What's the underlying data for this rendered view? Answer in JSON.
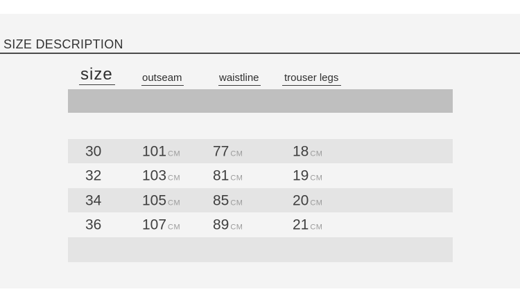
{
  "chart_data": {
    "type": "table",
    "title": "SIZE DESCRIPTION",
    "columns": [
      "size",
      "outseam",
      "waistline",
      "trouser legs"
    ],
    "unit": "CM",
    "rows": [
      {
        "size": "30",
        "outseam": "101",
        "waistline": "77",
        "trouser_legs": "18"
      },
      {
        "size": "32",
        "outseam": "103",
        "waistline": "81",
        "trouser_legs": "19"
      },
      {
        "size": "34",
        "outseam": "105",
        "waistline": "85",
        "trouser_legs": "20"
      },
      {
        "size": "36",
        "outseam": "107",
        "waistline": "89",
        "trouser_legs": "21"
      }
    ]
  },
  "colors": {
    "page_bg": "#f4f4f4",
    "banner": "#bfbfbf",
    "row_stripe": "#e4e4e4",
    "title_text": "#333333",
    "number_text": "#3f3f3f",
    "unit_text": "#9b9b9b",
    "rule": "#4a4a4a"
  }
}
